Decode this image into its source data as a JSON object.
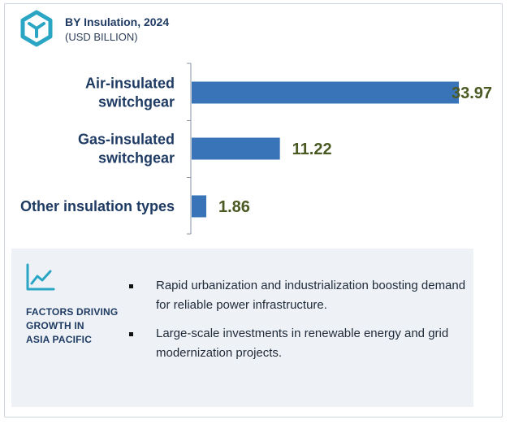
{
  "header": {
    "title": "BY Insulation, 2024",
    "subtitle": "(USD BILLION)"
  },
  "chart_data": {
    "type": "bar",
    "orientation": "horizontal",
    "categories": [
      [
        "Air-insulated",
        "switchgear"
      ],
      [
        "Gas-insulated",
        "switchgear"
      ],
      [
        "Other insulation types"
      ]
    ],
    "values": [
      33.97,
      11.22,
      1.86
    ],
    "value_labels": [
      "33.97",
      "11.22",
      "1.86"
    ],
    "bar_color": "#3a74b8",
    "value_label_color": "#4a5a22",
    "xlim": [
      0,
      33.97
    ],
    "grid": false,
    "legend": "none"
  },
  "factors": {
    "heading": [
      "FACTORS DRIVING",
      "GROWTH IN",
      "ASIA PACIFIC"
    ],
    "icon": "trend-line-icon",
    "items": [
      "Rapid urbanization and industrialization boosting demand for reliable power infrastructure.",
      "Large-scale investments in renewable energy and grid modernization projects."
    ]
  },
  "colors": {
    "accent": "#2aa6c4",
    "title": "#1f3b63",
    "panel_bg": "#eef2f7"
  }
}
